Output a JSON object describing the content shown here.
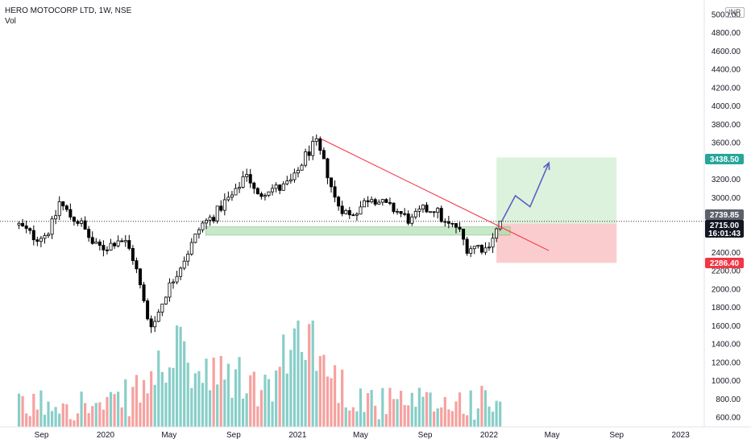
{
  "header": {
    "symbol": "HERO MOTOCORP LTD, 1W, NSE",
    "indicator": "Vol",
    "currency": "INR"
  },
  "price_badges": {
    "target": "3438.50",
    "last": "2739.85",
    "current": "2715.00",
    "countdown": "16:01:43",
    "stop": "2286.40"
  },
  "colors": {
    "up": "#26a69a",
    "down": "#ef5350",
    "candle": "#000000",
    "trendline": "#f23645",
    "projection": "#5b5fc7",
    "target_zone": "#d7f0d6",
    "stop_zone": "#fbc6c8",
    "support_zone": "#a5dca6"
  },
  "chart_data": {
    "type": "candlestick",
    "interval": "1W",
    "y_axis": {
      "ticks": [
        600,
        800,
        1000,
        1200,
        1400,
        1600,
        1800,
        2000,
        2200,
        2400,
        2600,
        2800,
        3000,
        3200,
        3400,
        3600,
        3800,
        4000,
        4200,
        4400,
        4600,
        4800,
        5000
      ],
      "tick_labels": [
        "600.00",
        "800.00",
        "1000.00",
        "1200.00",
        "1400.00",
        "1600.00",
        "1800.00",
        "2000.00",
        "2200.00",
        "2400.00",
        "2600.00",
        "2800.00",
        "3000.00",
        "3200.00",
        "3400.00",
        "3600.00",
        "3800.00",
        "4000.00",
        "4200.00",
        "4400.00",
        "4600.00",
        "4800.00",
        "5000.00"
      ],
      "range": [
        480,
        5200
      ]
    },
    "x_axis": {
      "labels": [
        "Sep",
        "2020",
        "May",
        "Sep",
        "2021",
        "May",
        "Sep",
        "2022",
        "May",
        "Sep",
        "2023"
      ],
      "dates": [
        "2019-09-01",
        "2020-01-01",
        "2020-05-01",
        "2020-09-01",
        "2021-01-01",
        "2021-05-01",
        "2021-09-01",
        "2022-01-01",
        "2022-05-01",
        "2022-09-01",
        "2023-01-01"
      ]
    },
    "price_path": [
      {
        "date": "2019-07-20",
        "close": 2700
      },
      {
        "date": "2019-08-20",
        "close": 2560
      },
      {
        "date": "2019-09-10",
        "close": 2600
      },
      {
        "date": "2019-09-25",
        "close": 2750
      },
      {
        "date": "2019-10-05",
        "close": 2950
      },
      {
        "date": "2019-10-25",
        "close": 2800
      },
      {
        "date": "2019-11-15",
        "close": 2720
      },
      {
        "date": "2019-12-10",
        "close": 2470
      },
      {
        "date": "2020-01-01",
        "close": 2450
      },
      {
        "date": "2020-01-25",
        "close": 2550
      },
      {
        "date": "2020-02-10",
        "close": 2500
      },
      {
        "date": "2020-02-25",
        "close": 2300
      },
      {
        "date": "2020-03-20",
        "close": 1700
      },
      {
        "date": "2020-04-01",
        "close": 1600
      },
      {
        "date": "2020-04-25",
        "close": 1960
      },
      {
        "date": "2020-05-20",
        "close": 2230
      },
      {
        "date": "2020-06-10",
        "close": 2450
      },
      {
        "date": "2020-07-01",
        "close": 2700
      },
      {
        "date": "2020-07-25",
        "close": 2800
      },
      {
        "date": "2020-08-15",
        "close": 2950
      },
      {
        "date": "2020-09-05",
        "close": 3050
      },
      {
        "date": "2020-09-25",
        "close": 3300
      },
      {
        "date": "2020-10-15",
        "close": 3000
      },
      {
        "date": "2020-11-05",
        "close": 3100
      },
      {
        "date": "2020-12-01",
        "close": 3100
      },
      {
        "date": "2020-12-25",
        "close": 3200
      },
      {
        "date": "2021-01-15",
        "close": 3450
      },
      {
        "date": "2021-02-05",
        "close": 3600
      },
      {
        "date": "2021-02-25",
        "close": 3300
      },
      {
        "date": "2021-03-15",
        "close": 2950
      },
      {
        "date": "2021-04-10",
        "close": 2800
      },
      {
        "date": "2021-05-01",
        "close": 2900
      },
      {
        "date": "2021-05-20",
        "close": 3020
      },
      {
        "date": "2021-06-15",
        "close": 2920
      },
      {
        "date": "2021-07-10",
        "close": 2850
      },
      {
        "date": "2021-08-05",
        "close": 2740
      },
      {
        "date": "2021-08-25",
        "close": 2860
      },
      {
        "date": "2021-09-20",
        "close": 2880
      },
      {
        "date": "2021-10-10",
        "close": 2700
      },
      {
        "date": "2021-11-01",
        "close": 2680
      },
      {
        "date": "2021-11-20",
        "close": 2450
      },
      {
        "date": "2021-12-10",
        "close": 2470
      },
      {
        "date": "2021-12-25",
        "close": 2440
      },
      {
        "date": "2022-01-10",
        "close": 2600
      },
      {
        "date": "2022-01-25",
        "close": 2739.85
      }
    ],
    "volume_path": [
      {
        "date": "2019-07-20",
        "volume": 700
      },
      {
        "date": "2019-10-05",
        "volume": 820
      },
      {
        "date": "2020-01-01",
        "volume": 700
      },
      {
        "date": "2020-03-20",
        "volume": 950
      },
      {
        "date": "2020-04-25",
        "volume": 1220
      },
      {
        "date": "2020-05-20",
        "volume": 1300
      },
      {
        "date": "2020-07-01",
        "volume": 1020
      },
      {
        "date": "2020-09-05",
        "volume": 1050
      },
      {
        "date": "2020-11-05",
        "volume": 880
      },
      {
        "date": "2021-01-15",
        "volume": 1650
      },
      {
        "date": "2021-02-25",
        "volume": 1120
      },
      {
        "date": "2021-04-10",
        "volume": 880
      },
      {
        "date": "2021-06-15",
        "volume": 760
      },
      {
        "date": "2021-09-20",
        "volume": 760
      },
      {
        "date": "2021-11-20",
        "volume": 800
      },
      {
        "date": "2022-01-10",
        "volume": 750
      },
      {
        "date": "2022-01-25",
        "volume": 900
      }
    ],
    "volume_y": {
      "base": 600,
      "max": 1650
    },
    "annotations": {
      "trendline": {
        "from": {
          "date": "2021-02-15",
          "price": 3640
        },
        "to": {
          "date": "2022-04-25",
          "price": 2420
        }
      },
      "support_zone": {
        "from": "2020-07-10",
        "to": "2022-02-10",
        "low": 2590,
        "high": 2680
      },
      "position": {
        "from": "2022-01-15",
        "to": "2022-09-01",
        "entry": 2715.0,
        "target": 3438.5,
        "stop": 2286.4
      },
      "projection": [
        {
          "date": "2022-01-25",
          "price": 2740
        },
        {
          "date": "2022-02-20",
          "price": 3020
        },
        {
          "date": "2022-03-20",
          "price": 2900
        },
        {
          "date": "2022-04-25",
          "price": 3380
        }
      ],
      "last_price_line": 2739.85
    }
  }
}
